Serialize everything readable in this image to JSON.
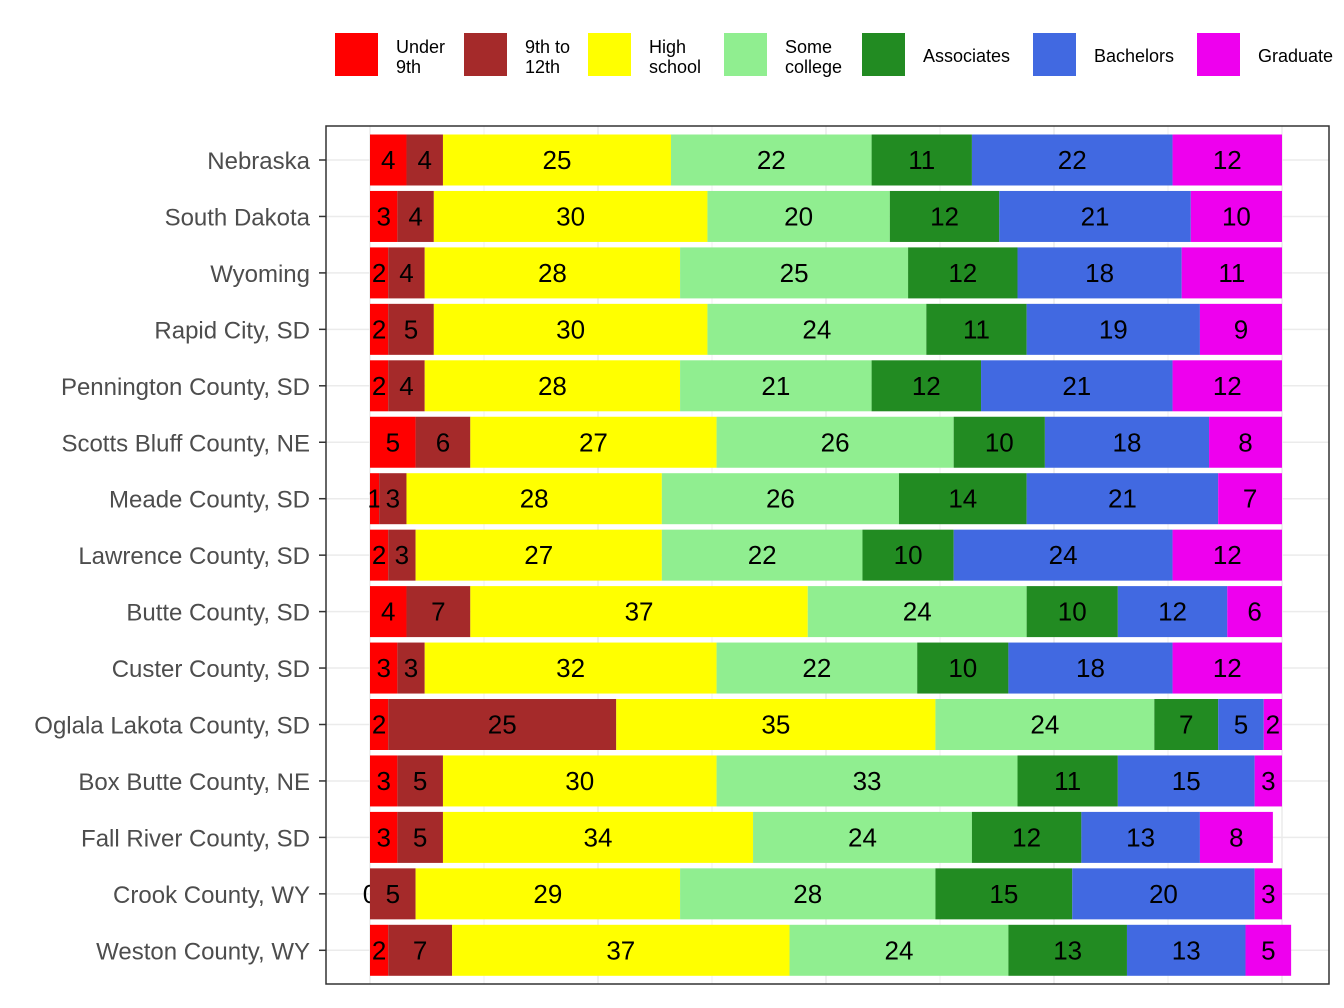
{
  "chart_data": {
    "type": "bar",
    "orientation": "horizontal",
    "stacked": "percent",
    "categories": [
      "Nebraska",
      "South Dakota",
      "Wyoming",
      "Rapid City, SD",
      "Pennington County, SD",
      "Scotts Bluff County, NE",
      "Meade County, SD",
      "Lawrence County, SD",
      "Butte County, SD",
      "Custer County, SD",
      "Oglala Lakota County, SD",
      "Box Butte County, NE",
      "Fall River County, SD",
      "Crook County, WY",
      "Weston County, WY"
    ],
    "series": [
      {
        "name": "Under 9th",
        "label_lines": [
          "Under",
          "9th"
        ],
        "color": "#ff0000",
        "values": [
          4,
          3,
          2,
          2,
          2,
          5,
          1,
          2,
          4,
          3,
          2,
          3,
          3,
          0,
          2
        ]
      },
      {
        "name": "9th to 12th",
        "label_lines": [
          "9th to",
          "12th"
        ],
        "color": "#a52a2a",
        "values": [
          4,
          4,
          4,
          5,
          4,
          6,
          3,
          3,
          7,
          3,
          25,
          5,
          5,
          5,
          7
        ]
      },
      {
        "name": "High school",
        "label_lines": [
          "High",
          "school"
        ],
        "color": "#ffff00",
        "values": [
          25,
          30,
          28,
          30,
          28,
          27,
          28,
          27,
          37,
          32,
          35,
          30,
          34,
          29,
          37
        ]
      },
      {
        "name": "Some college",
        "label_lines": [
          "Some",
          "college"
        ],
        "color": "#90ee90",
        "values": [
          22,
          20,
          25,
          24,
          21,
          26,
          26,
          22,
          24,
          22,
          24,
          33,
          24,
          28,
          24
        ]
      },
      {
        "name": "Associates",
        "label_lines": [
          "Associates"
        ],
        "color": "#228b22",
        "values": [
          11,
          12,
          12,
          11,
          12,
          10,
          14,
          10,
          10,
          10,
          7,
          11,
          12,
          15,
          13
        ]
      },
      {
        "name": "Bachelors",
        "label_lines": [
          "Bachelors"
        ],
        "color": "#4169e1",
        "values": [
          22,
          21,
          18,
          19,
          21,
          18,
          21,
          24,
          12,
          18,
          5,
          15,
          13,
          20,
          13
        ]
      },
      {
        "name": "Graduate",
        "label_lines": [
          "Graduate"
        ],
        "color": "#ee00ee",
        "values": [
          12,
          10,
          11,
          9,
          12,
          8,
          7,
          12,
          6,
          12,
          2,
          3,
          8,
          3,
          5
        ]
      }
    ],
    "xlim": [
      0,
      100
    ],
    "grid": true,
    "legend_position": "top",
    "title": "",
    "xlabel": "",
    "ylabel": ""
  }
}
